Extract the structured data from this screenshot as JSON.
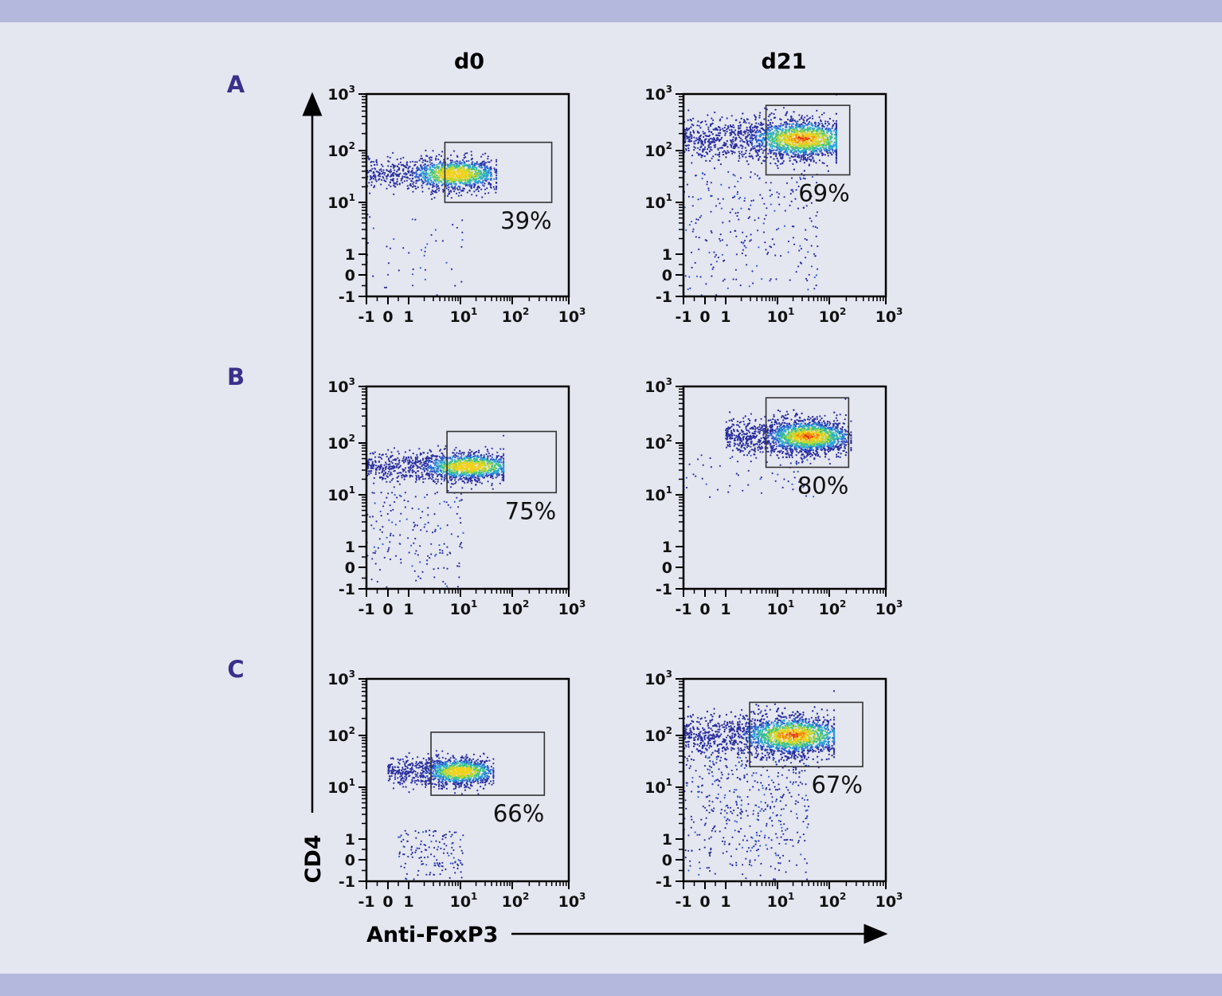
{
  "colors": {
    "band": "#b3b8dc",
    "background": "#e4e6f0",
    "row_label": "#3b2f8a"
  },
  "chart_data": {
    "type": "scatter",
    "subtype": "flow-cytometry density plot grid",
    "column_titles": [
      "d0",
      "d21"
    ],
    "row_labels": [
      "A",
      "B",
      "C"
    ],
    "xlabel": "Anti-FoxP3",
    "ylabel": "CD4",
    "x_ticks": [
      {
        "b": "-1",
        "e": ""
      },
      {
        "b": "0",
        "e": ""
      },
      {
        "b": "1",
        "e": ""
      },
      {
        "b": "10",
        "e": "1"
      },
      {
        "b": "10",
        "e": "2"
      },
      {
        "b": "10",
        "e": "3"
      }
    ],
    "y_ticks": [
      {
        "b": "-1",
        "e": ""
      },
      {
        "b": "0",
        "e": ""
      },
      {
        "b": "1",
        "e": ""
      },
      {
        "b": "10",
        "e": "1"
      },
      {
        "b": "10",
        "e": "2"
      },
      {
        "b": "10",
        "e": "3"
      }
    ],
    "tick_values": [
      -1,
      0,
      1,
      10,
      100,
      1000
    ],
    "scale": "biexponential (linear below 1, log above)",
    "xlim": [
      -1,
      1000
    ],
    "ylim": [
      -1,
      1000
    ],
    "panels": [
      {
        "row": "A",
        "col": "d0",
        "gate_percent": "39%",
        "gate": {
          "x": [
            5,
            500
          ],
          "y": [
            10,
            140
          ]
        },
        "population": {
          "x": [
            -1,
            40
          ],
          "peak_x": 8,
          "y_center": 35,
          "y_spread_decades": 0.16,
          "n": 1400
        },
        "sparse": {
          "x": [
            -1,
            12
          ],
          "y": [
            -1,
            6
          ],
          "n": 45
        }
      },
      {
        "row": "A",
        "col": "d21",
        "gate_percent": "69%",
        "gate": {
          "x": [
            6,
            230
          ],
          "y": [
            34,
            630
          ]
        },
        "population": {
          "x": [
            -1,
            110
          ],
          "peak_x": 30,
          "y_center": 160,
          "y_spread_decades": 0.2,
          "n": 2600
        },
        "sparse": {
          "x": [
            -1,
            60
          ],
          "y": [
            -1,
            40
          ],
          "n": 260
        }
      },
      {
        "row": "B",
        "col": "d0",
        "gate_percent": "75%",
        "gate": {
          "x": [
            5.5,
            600
          ],
          "y": [
            11,
            160
          ]
        },
        "population": {
          "x": [
            -1,
            55
          ],
          "peak_x": 15,
          "y_center": 35,
          "y_spread_decades": 0.14,
          "n": 1500
        },
        "sparse": {
          "x": [
            -1,
            12
          ],
          "y": [
            -1,
            12
          ],
          "n": 170
        }
      },
      {
        "row": "B",
        "col": "d21",
        "gate_percent": "80%",
        "gate": {
          "x": [
            6,
            220
          ],
          "y": [
            34,
            630
          ]
        },
        "population": {
          "x": [
            1,
            200
          ],
          "peak_x": 40,
          "y_center": 130,
          "y_spread_decades": 0.17,
          "n": 2400
        },
        "sparse": {
          "x": [
            -1,
            50
          ],
          "y": [
            8,
            60
          ],
          "n": 60
        }
      },
      {
        "row": "C",
        "col": "d0",
        "gate_percent": "66%",
        "gate": {
          "x": [
            2.7,
            370
          ],
          "y": [
            7,
            114
          ]
        },
        "population": {
          "x": [
            0,
            35
          ],
          "peak_x": 10,
          "y_center": 20,
          "y_spread_decades": 0.14,
          "n": 1300
        },
        "sparse": {
          "x": [
            0.5,
            12
          ],
          "y": [
            -1,
            1.5
          ],
          "n": 140
        }
      },
      {
        "row": "C",
        "col": "d21",
        "gate_percent": "67%",
        "gate": {
          "x": [
            2.9,
            390
          ],
          "y": [
            25,
            385
          ]
        },
        "population": {
          "x": [
            -1,
            100
          ],
          "peak_x": 20,
          "y_center": 100,
          "y_spread_decades": 0.2,
          "n": 3000
        },
        "sparse": {
          "x": [
            -1,
            40
          ],
          "y": [
            -1,
            40
          ],
          "n": 450
        }
      }
    ]
  }
}
